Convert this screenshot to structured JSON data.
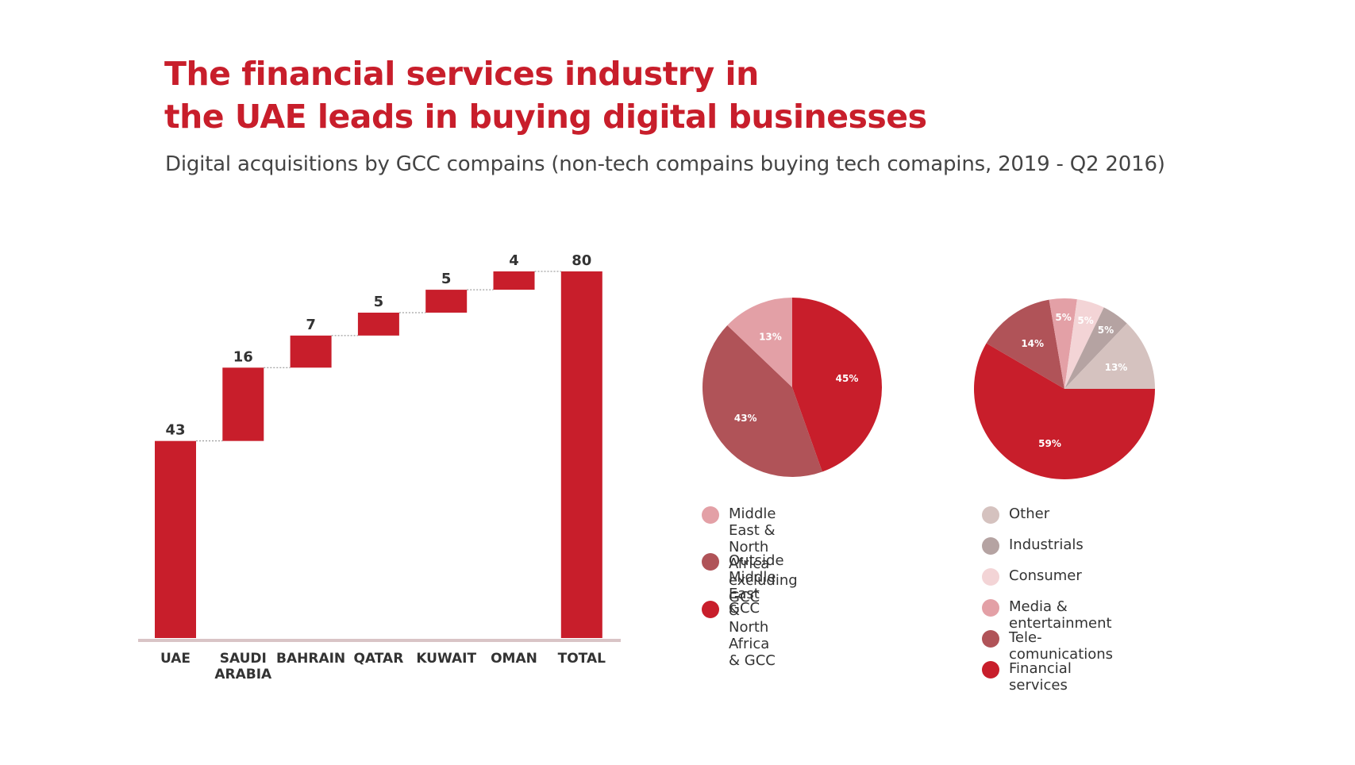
{
  "header": {
    "title_line1": "The financial services industry in",
    "title_line2": "the UAE leads in buying digital businesses",
    "subtitle": "Digital acquisitions by GCC compains (non-tech compains buying tech comapins, 2019 - Q2 2016)"
  },
  "colors": {
    "brand_red": "#c81e2b",
    "axis": "#d9c4c6"
  },
  "chart_data": [
    {
      "type": "bar",
      "subtype": "waterfall",
      "categories": [
        "UAE",
        "SAUDI ARABIA",
        "BAHRAIN",
        "QATAR",
        "KUWAIT",
        "OMAN",
        "TOTAL"
      ],
      "category_lines": [
        [
          "UAE"
        ],
        [
          "SAUDI",
          "ARABIA"
        ],
        [
          "BAHRAIN"
        ],
        [
          "QATAR"
        ],
        [
          "KUWAIT"
        ],
        [
          "OMAN"
        ],
        [
          "TOTAL"
        ]
      ],
      "values": [
        43,
        16,
        7,
        5,
        5,
        4,
        80
      ],
      "is_total": [
        false,
        false,
        false,
        false,
        false,
        false,
        true
      ],
      "ylim": [
        0,
        80
      ],
      "color": "#c81e2b"
    },
    {
      "type": "pie",
      "start": "top",
      "direction": "clockwise",
      "slices": [
        {
          "label": "GCC",
          "value": 45,
          "text": "45%",
          "color": "#c81e2b"
        },
        {
          "label": "Outside Middle East\n& North Africa & GCC",
          "value": 43,
          "text": "43%",
          "color": "#b05358"
        },
        {
          "label": "Middle East & North\nAfrica excluding GCC",
          "value": 13,
          "text": "13%",
          "color": "#e3a0a6"
        }
      ],
      "legend": [
        {
          "label": "Middle East & North\nAfrica excluding GCC",
          "color": "#e3a0a6"
        },
        {
          "label": "Outside Middle East\n& North Africa & GCC",
          "color": "#b05358"
        },
        {
          "label": "GCC",
          "color": "#c81e2b"
        }
      ]
    },
    {
      "type": "pie",
      "start": "right",
      "direction": "clockwise",
      "slices": [
        {
          "label": "Financial services",
          "value": 59,
          "text": "59%",
          "color": "#c81e2b"
        },
        {
          "label": "Tele-comunications",
          "value": 14,
          "text": "14%",
          "color": "#b05358"
        },
        {
          "label": "Media & entertainment",
          "value": 5,
          "text": "5%",
          "color": "#e3a0a6"
        },
        {
          "label": "Consumer",
          "value": 5,
          "text": "5%",
          "color": "#f3d4d6"
        },
        {
          "label": "Industrials",
          "value": 5,
          "text": "5%",
          "color": "#b5a3a2"
        },
        {
          "label": "Other",
          "value": 13,
          "text": "13%",
          "color": "#d5c2bf"
        }
      ],
      "legend": [
        {
          "label": "Other",
          "color": "#d5c2bf"
        },
        {
          "label": "Industrials",
          "color": "#b5a3a2"
        },
        {
          "label": "Consumer",
          "color": "#f3d4d6"
        },
        {
          "label": "Media & entertainment",
          "color": "#e3a0a6"
        },
        {
          "label": "Tele-comunications",
          "color": "#b05358"
        },
        {
          "label": "Financial services",
          "color": "#c81e2b"
        }
      ]
    }
  ]
}
